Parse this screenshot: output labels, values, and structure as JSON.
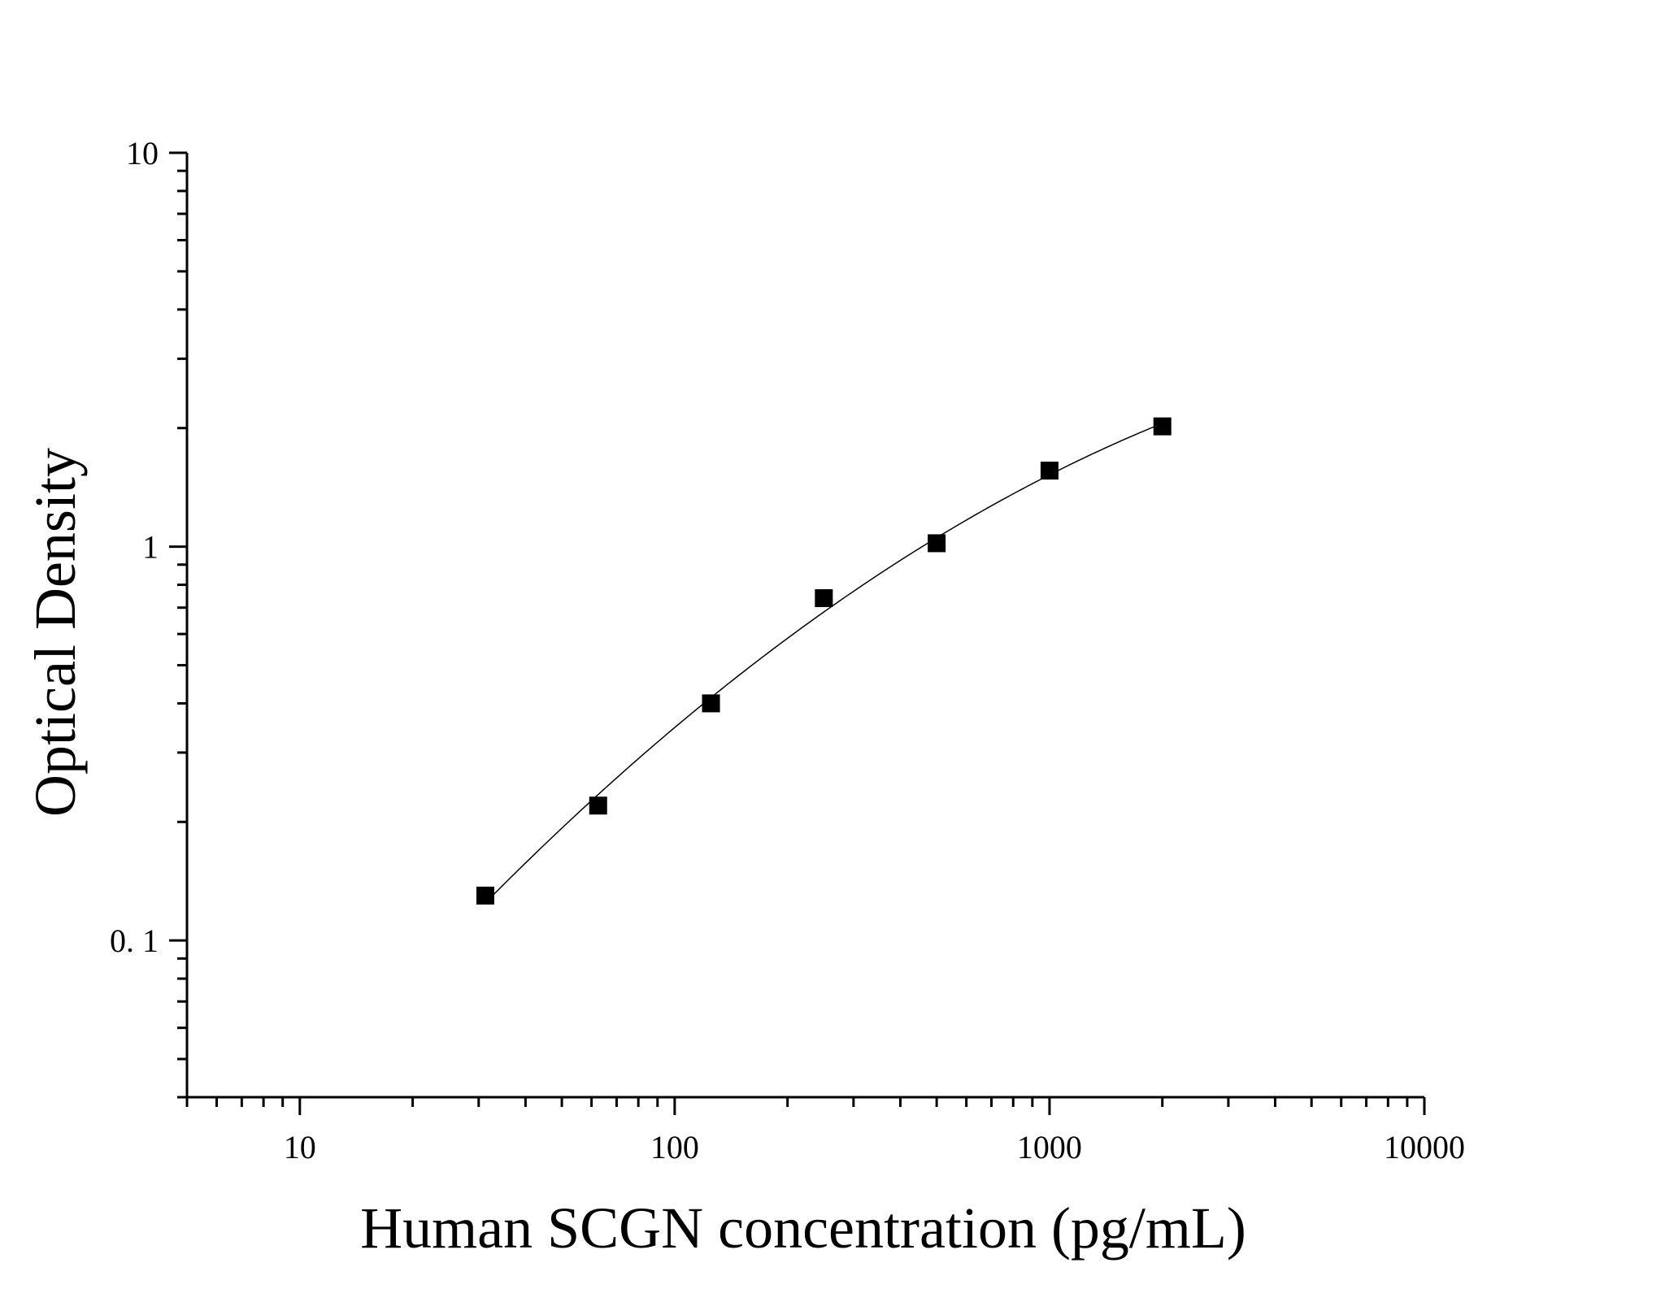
{
  "chart_data": {
    "type": "scatter",
    "title": "",
    "xlabel": "Human SCGN concentration (pg/mL)",
    "ylabel": "Optical Density",
    "xscale": "log",
    "yscale": "log",
    "xlim": [
      5,
      10000
    ],
    "ylim": [
      0.04,
      10
    ],
    "x_ticks": [
      10,
      100,
      1000,
      10000
    ],
    "x_tick_labels": [
      "10",
      "100",
      "1000",
      "10000"
    ],
    "y_ticks": [
      0.1,
      1,
      10
    ],
    "y_tick_labels": [
      "0. 1",
      "1",
      "10"
    ],
    "grid": false,
    "legend": "none",
    "marker": "square",
    "marker_color": "#000000",
    "series": [
      {
        "x": [
          31.25,
          62.5,
          125,
          250,
          500,
          1000,
          2000
        ],
        "y": [
          0.13,
          0.22,
          0.4,
          0.74,
          1.02,
          1.56,
          2.02
        ]
      }
    ],
    "fit_curve": true
  }
}
